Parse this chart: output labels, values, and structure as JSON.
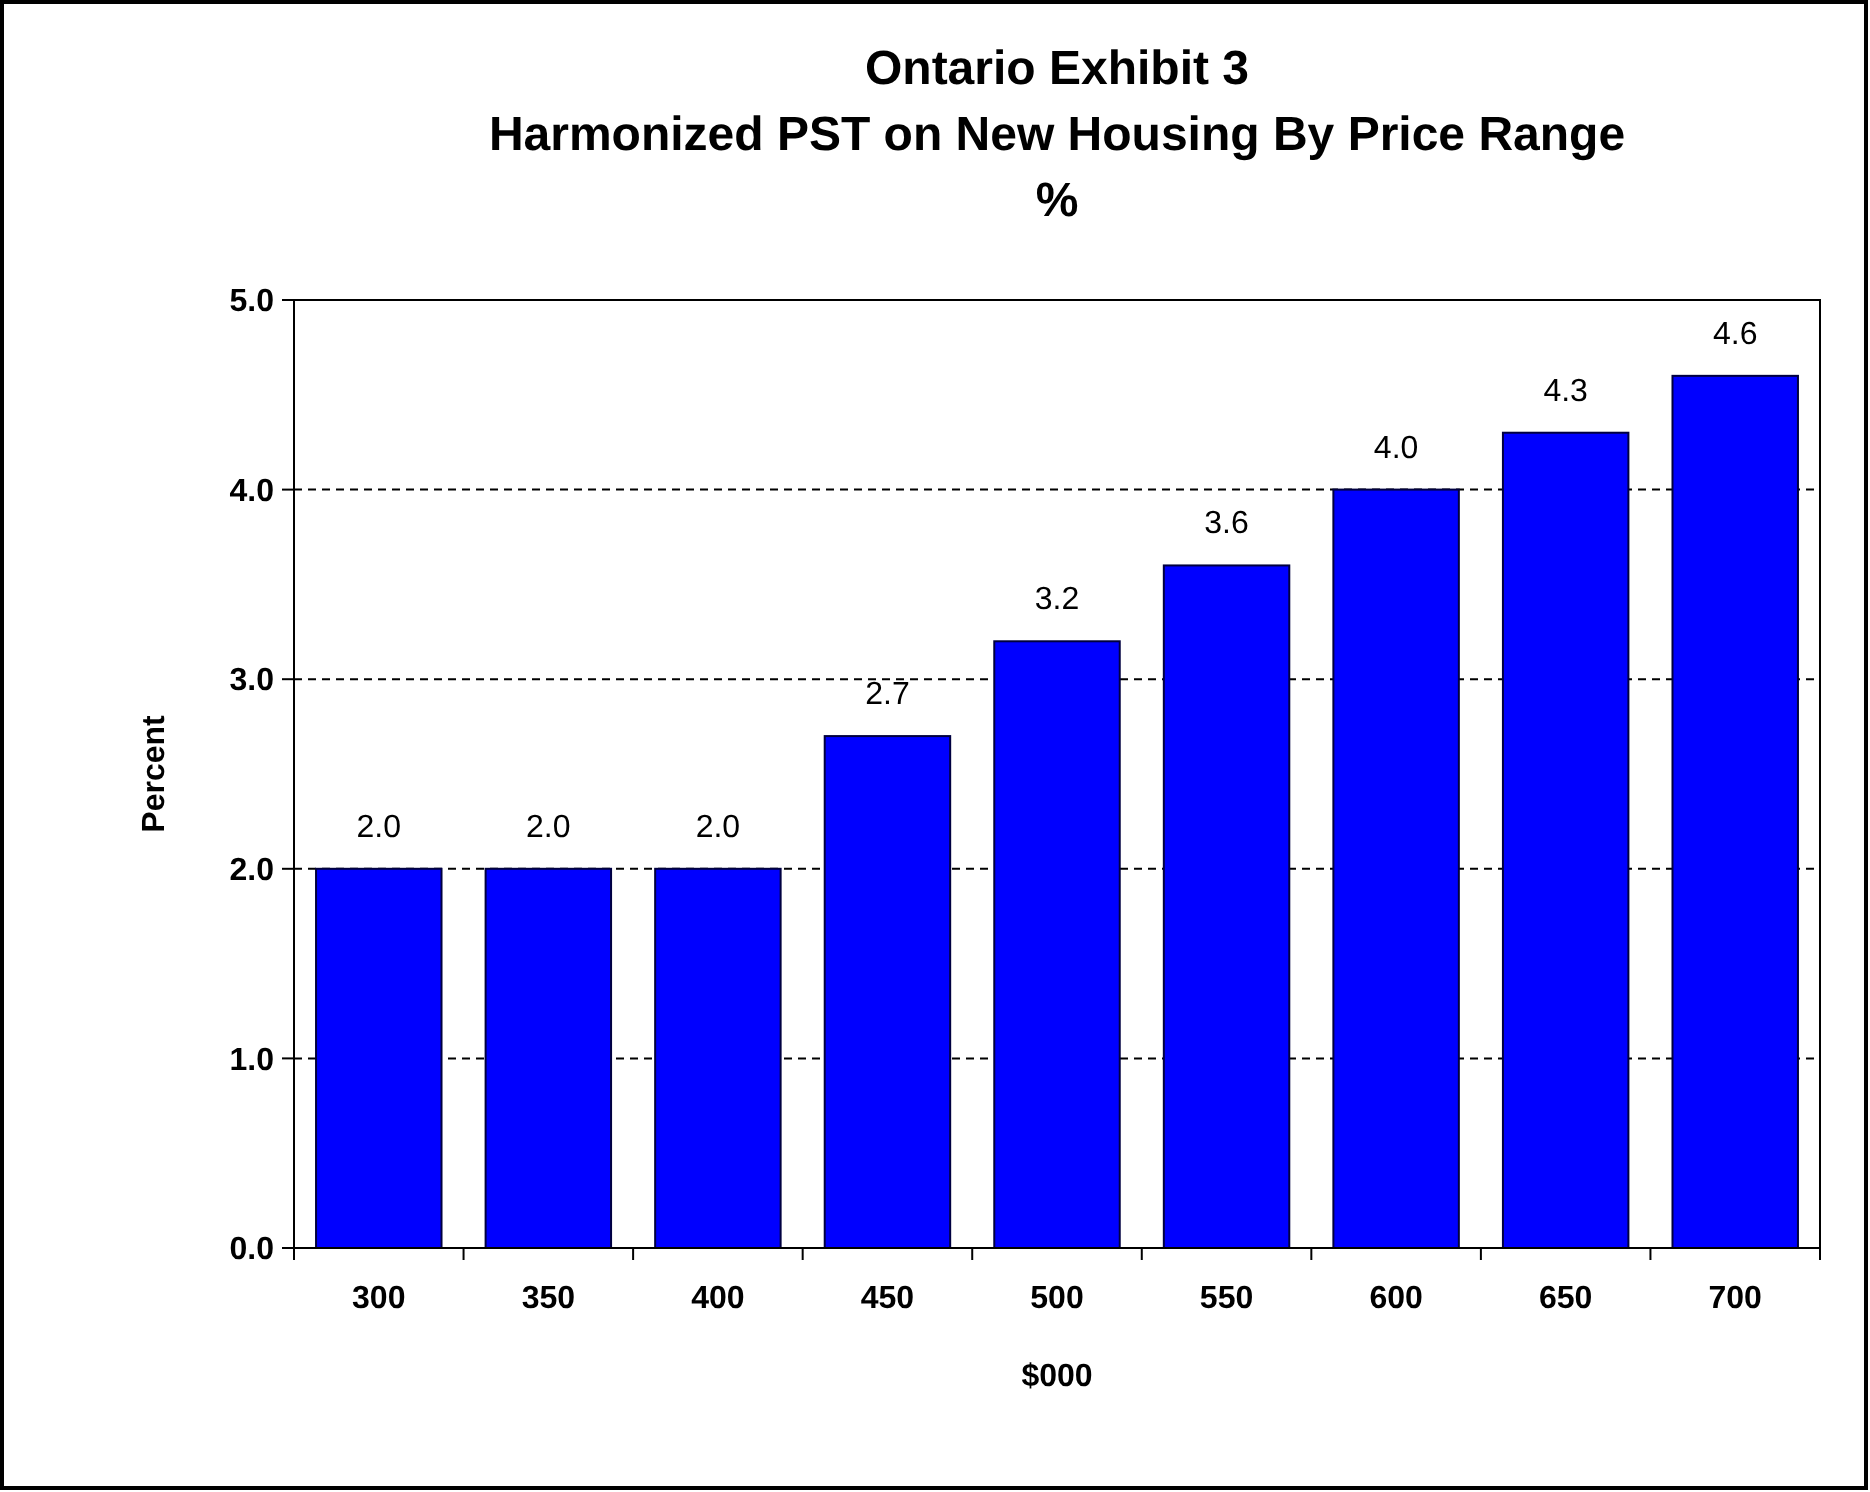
{
  "chart_data": {
    "type": "bar",
    "title": "Ontario Exhibit 3\nHarmonized PST on New Housing By Price Range",
    "subtitle": "%",
    "xlabel": "$000",
    "ylabel": "Percent",
    "categories": [
      "300",
      "350",
      "400",
      "450",
      "500",
      "550",
      "600",
      "650",
      "700"
    ],
    "values": [
      2.0,
      2.0,
      2.0,
      2.7,
      3.2,
      3.6,
      4.0,
      4.3,
      4.6
    ],
    "color": "#0000ff",
    "ylim": [
      0,
      5
    ],
    "yticks": [
      {
        "value": 0,
        "label": "0.0"
      },
      {
        "value": 1,
        "label": "1.0"
      },
      {
        "value": 2,
        "label": "2.0"
      },
      {
        "value": 3,
        "label": "3.0"
      },
      {
        "value": 4,
        "label": "4.0"
      },
      {
        "value": 5,
        "label": "5.0"
      }
    ],
    "value_labels": [
      "2.0",
      "2.0",
      "2.0",
      "2.7",
      "3.2",
      "3.6",
      "4.0",
      "4.3",
      "4.6"
    ],
    "grid": "y"
  }
}
